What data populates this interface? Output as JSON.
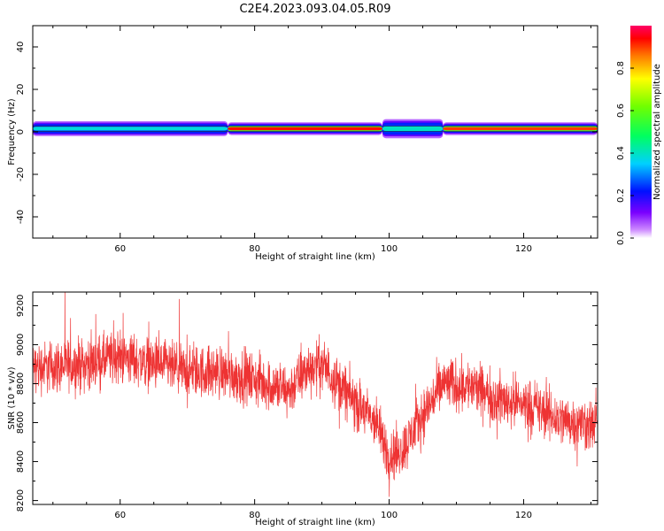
{
  "title": "C2E4.2023.093.04.05.R09",
  "colorbar": {
    "label": "Normalized spectral amplitude",
    "ticks": [
      "0.0",
      "0.2",
      "0.4",
      "0.6",
      "0.8"
    ],
    "tick_values": [
      0.0,
      0.2,
      0.4,
      0.6,
      0.8
    ],
    "range": [
      0,
      1
    ],
    "colormap": "hsv-like (purple at 0, red/magenta at 1)"
  },
  "chart_data": [
    {
      "type": "heatmap",
      "title": "",
      "xlabel": "Height of straight line (km)",
      "ylabel": "Frequency (Hz)",
      "xlim": [
        47,
        131
      ],
      "ylim": [
        -50,
        50
      ],
      "xticks": [
        60,
        80,
        100,
        120
      ],
      "yticks": [
        -40,
        -20,
        0,
        20,
        40
      ],
      "band_center_hz": 1.5,
      "segments": [
        {
          "x0": 47,
          "x1": 76,
          "level": 0.38,
          "width_hz": 7
        },
        {
          "x0": 76,
          "x1": 99,
          "level": 0.93,
          "width_hz": 6
        },
        {
          "x0": 99,
          "x1": 108,
          "level": 0.4,
          "width_hz": 9
        },
        {
          "x0": 108,
          "x1": 131,
          "level": 0.9,
          "width_hz": 6
        }
      ]
    },
    {
      "type": "line",
      "title": "",
      "xlabel": "Height of straight line (km)",
      "ylabel": "SNR (10 * v/v)",
      "xlim": [
        47,
        131
      ],
      "ylim": [
        8180,
        9270
      ],
      "xticks": [
        60,
        80,
        100,
        120
      ],
      "yticks": [
        8200,
        8400,
        8600,
        8800,
        9000,
        9200
      ],
      "color": "#ee3333",
      "trend": {
        "x": [
          47,
          55,
          60,
          65,
          70,
          75,
          80,
          85,
          88,
          90,
          92,
          95,
          98,
          100,
          102,
          105,
          108,
          112,
          116,
          120,
          125,
          131
        ],
        "y": [
          8880,
          8900,
          8940,
          8900,
          8860,
          8860,
          8820,
          8760,
          8880,
          8900,
          8820,
          8700,
          8600,
          8430,
          8460,
          8640,
          8800,
          8790,
          8720,
          8700,
          8620,
          8580
        ]
      },
      "noise_amplitude": 110
    }
  ]
}
